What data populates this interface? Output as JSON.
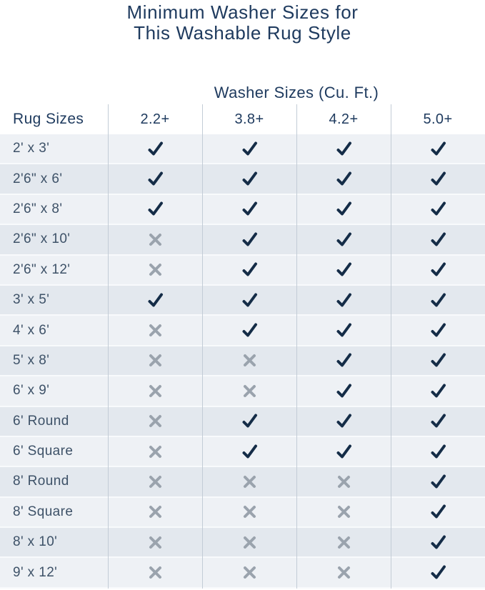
{
  "title": {
    "line1": "Minimum Washer Sizes for",
    "line2": "This Washable Rug Style"
  },
  "colors": {
    "heading_navy": "#1e3a5e",
    "row_label_slate": "#3e5268",
    "check": "#142c47",
    "cross": "#9aa3ad",
    "row_light": "#eef1f5",
    "row_dark": "#e3e8ee",
    "separator_line": "#c3ccd6",
    "row_gap": "#f8fafc"
  },
  "icons": {
    "check": "check-icon",
    "cross": "cross-icon"
  },
  "chart_data": {
    "type": "table",
    "title": "Minimum Washer Sizes for This Washable Rug Style",
    "group_header": "Washer Sizes (Cu. Ft.)",
    "columns": [
      "Rug Sizes",
      "2.2+",
      "3.8+",
      "4.2+",
      "5.0+"
    ],
    "rows": [
      {
        "label": "2' x 3'",
        "values": [
          "check",
          "check",
          "check",
          "check"
        ]
      },
      {
        "label": "2'6\" x 6'",
        "values": [
          "check",
          "check",
          "check",
          "check"
        ]
      },
      {
        "label": "2'6\" x 8'",
        "values": [
          "check",
          "check",
          "check",
          "check"
        ]
      },
      {
        "label": "2'6\" x 10'",
        "values": [
          "cross",
          "check",
          "check",
          "check"
        ]
      },
      {
        "label": "2'6\" x 12'",
        "values": [
          "cross",
          "check",
          "check",
          "check"
        ]
      },
      {
        "label": "3' x 5'",
        "values": [
          "check",
          "check",
          "check",
          "check"
        ]
      },
      {
        "label": "4' x 6'",
        "values": [
          "cross",
          "check",
          "check",
          "check"
        ]
      },
      {
        "label": "5' x 8'",
        "values": [
          "cross",
          "cross",
          "check",
          "check"
        ]
      },
      {
        "label": "6' x 9'",
        "values": [
          "cross",
          "cross",
          "check",
          "check"
        ]
      },
      {
        "label": "6' Round",
        "values": [
          "cross",
          "check",
          "check",
          "check"
        ]
      },
      {
        "label": "6' Square",
        "values": [
          "cross",
          "check",
          "check",
          "check"
        ]
      },
      {
        "label": "8' Round",
        "values": [
          "cross",
          "cross",
          "cross",
          "check"
        ]
      },
      {
        "label": "8' Square",
        "values": [
          "cross",
          "cross",
          "cross",
          "check"
        ]
      },
      {
        "label": "8' x 10'",
        "values": [
          "cross",
          "cross",
          "cross",
          "check"
        ]
      },
      {
        "label": "9' x 12'",
        "values": [
          "cross",
          "cross",
          "cross",
          "check"
        ]
      }
    ]
  }
}
